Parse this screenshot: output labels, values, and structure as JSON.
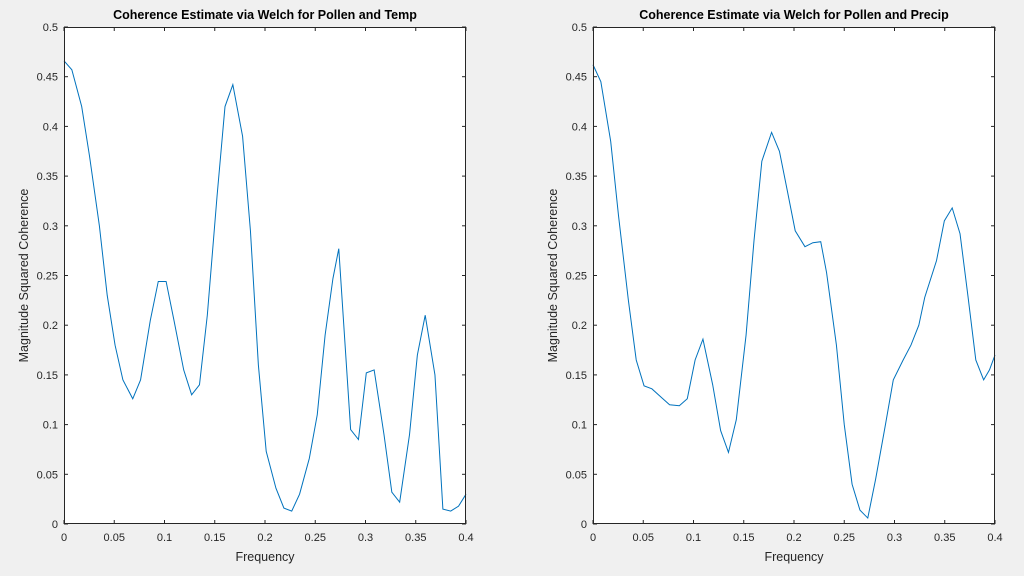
{
  "colors": {
    "figure_background": "#f0f0f0",
    "axes_background": "#ffffff",
    "axes_line": "#262626",
    "series_line": "#0072bd"
  },
  "chart_data": [
    {
      "type": "line",
      "title": "Coherence Estimate via Welch for Pollen and Temp",
      "xlabel": "Frequency",
      "ylabel": "Magnitude Squared Coherence",
      "xlim": [
        0,
        0.4
      ],
      "ylim": [
        0,
        0.5
      ],
      "xticks": [
        "0",
        "0.05",
        "0.1",
        "0.15",
        "0.2",
        "0.25",
        "0.3",
        "0.35",
        "0.4"
      ],
      "yticks": [
        "0",
        "0.05",
        "0.1",
        "0.15",
        "0.2",
        "0.25",
        "0.3",
        "0.35",
        "0.4",
        "0.45",
        "0.5"
      ],
      "grid": false,
      "legend": "none",
      "series": [
        {
          "x": [
            0,
            0.0078,
            0.0176,
            0.0254,
            0.0352,
            0.043,
            0.0508,
            0.0586,
            0.0684,
            0.0762,
            0.0859,
            0.0938,
            0.1016,
            0.1094,
            0.1191,
            0.127,
            0.1348,
            0.1426,
            0.1523,
            0.1602,
            0.168,
            0.1777,
            0.1855,
            0.1934,
            0.2012,
            0.2109,
            0.2188,
            0.2266,
            0.2344,
            0.2441,
            0.252,
            0.2598,
            0.2676,
            0.2734,
            0.2852,
            0.293,
            0.3008,
            0.3086,
            0.3184,
            0.3262,
            0.334,
            0.3438,
            0.3516,
            0.3594,
            0.3691,
            0.377,
            0.3848,
            0.3926,
            0.4
          ],
          "y": [
            0.466,
            0.457,
            0.42,
            0.37,
            0.3,
            0.23,
            0.18,
            0.145,
            0.126,
            0.145,
            0.205,
            0.244,
            0.244,
            0.205,
            0.155,
            0.13,
            0.14,
            0.21,
            0.33,
            0.42,
            0.442,
            0.39,
            0.295,
            0.16,
            0.073,
            0.036,
            0.016,
            0.013,
            0.03,
            0.066,
            0.11,
            0.19,
            0.247,
            0.277,
            0.095,
            0.085,
            0.152,
            0.155,
            0.09,
            0.032,
            0.022,
            0.09,
            0.17,
            0.21,
            0.15,
            0.015,
            0.013,
            0.018,
            0.03
          ]
        }
      ]
    },
    {
      "type": "line",
      "title": "Coherence Estimate via Welch for Pollen and Precip",
      "xlabel": "Frequency",
      "ylabel": "Magnitude Squared Coherence",
      "xlim": [
        0,
        0.4
      ],
      "ylim": [
        0,
        0.5
      ],
      "xticks": [
        "0",
        "0.05",
        "0.1",
        "0.15",
        "0.2",
        "0.25",
        "0.3",
        "0.35",
        "0.4"
      ],
      "yticks": [
        "0",
        "0.05",
        "0.1",
        "0.15",
        "0.2",
        "0.25",
        "0.3",
        "0.35",
        "0.4",
        "0.45",
        "0.5"
      ],
      "grid": false,
      "legend": "none",
      "series": [
        {
          "x": [
            0,
            0.0078,
            0.0176,
            0.0254,
            0.0352,
            0.043,
            0.0508,
            0.0586,
            0.0684,
            0.0762,
            0.0859,
            0.0938,
            0.1016,
            0.1094,
            0.1191,
            0.127,
            0.1348,
            0.1426,
            0.1523,
            0.1602,
            0.168,
            0.1777,
            0.1855,
            0.1934,
            0.2012,
            0.2109,
            0.2188,
            0.2266,
            0.2324,
            0.2422,
            0.25,
            0.2578,
            0.2656,
            0.2734,
            0.2812,
            0.291,
            0.2988,
            0.3086,
            0.3164,
            0.3242,
            0.3301,
            0.3418,
            0.3496,
            0.3574,
            0.3652,
            0.373,
            0.3809,
            0.3887,
            0.3945,
            0.4
          ],
          "y": [
            0.462,
            0.445,
            0.385,
            0.31,
            0.225,
            0.165,
            0.139,
            0.136,
            0.127,
            0.12,
            0.119,
            0.126,
            0.165,
            0.186,
            0.14,
            0.094,
            0.072,
            0.105,
            0.19,
            0.285,
            0.365,
            0.394,
            0.375,
            0.335,
            0.295,
            0.279,
            0.283,
            0.284,
            0.253,
            0.18,
            0.1,
            0.04,
            0.014,
            0.006,
            0.045,
            0.1,
            0.145,
            0.165,
            0.18,
            0.2,
            0.228,
            0.265,
            0.305,
            0.318,
            0.292,
            0.23,
            0.165,
            0.145,
            0.155,
            0.17
          ]
        }
      ]
    }
  ]
}
